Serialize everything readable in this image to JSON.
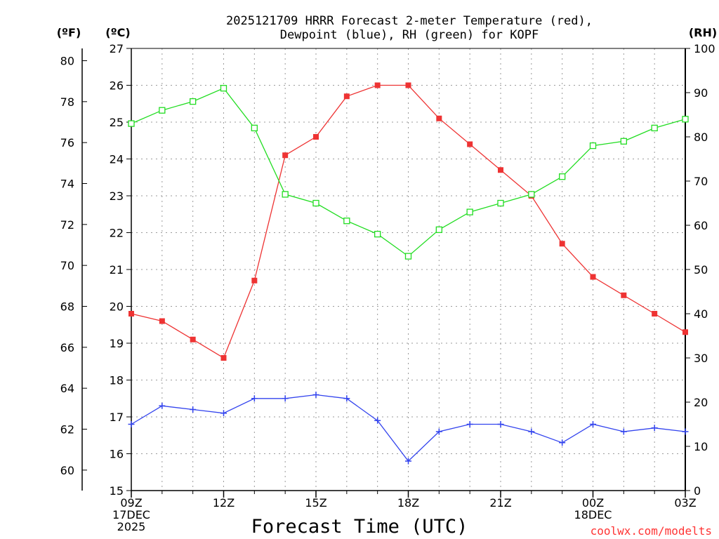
{
  "title_lines": [
    "2025121709 HRRR Forecast 2-meter Temperature (red),",
    "Dewpoint (blue), RH (green) for KOPF"
  ],
  "units": {
    "fahrenheit": "(ºF)",
    "celsius": "(ºC)",
    "rh": "(RH)"
  },
  "x_axis_label": "Forecast Time (UTC)",
  "credit": "coolwx.com/modelts",
  "chart_data": {
    "type": "line",
    "title": "2025121709 HRRR Forecast 2-meter Temperature (red), Dewpoint (blue), RH (green) for KOPF",
    "xlabel": "Forecast Time (UTC)",
    "x_hours": [
      0,
      1,
      2,
      3,
      4,
      5,
      6,
      7,
      8,
      9,
      10,
      11,
      12,
      13,
      14,
      15,
      16,
      17,
      18
    ],
    "xlim": [
      0,
      18
    ],
    "celsius_axis": {
      "range": [
        15,
        27
      ],
      "ticks": [
        "15",
        "16",
        "17",
        "18",
        "19",
        "20",
        "21",
        "22",
        "23",
        "24",
        "25",
        "26",
        "27"
      ]
    },
    "fahrenheit_axis": {
      "ticks": [
        "60",
        "62",
        "64",
        "66",
        "68",
        "70",
        "72",
        "74",
        "76",
        "78",
        "80"
      ]
    },
    "rh_axis": {
      "range": [
        0,
        100
      ],
      "ticks": [
        "0",
        "10",
        "20",
        "30",
        "40",
        "50",
        "60",
        "70",
        "80",
        "90",
        "100"
      ]
    },
    "x_ticks": [
      {
        "hour": 0,
        "lines": [
          "09Z",
          "17DEC",
          "2025"
        ]
      },
      {
        "hour": 3,
        "lines": [
          "12Z"
        ]
      },
      {
        "hour": 6,
        "lines": [
          "15Z"
        ]
      },
      {
        "hour": 9,
        "lines": [
          "18Z"
        ]
      },
      {
        "hour": 12,
        "lines": [
          "21Z"
        ]
      },
      {
        "hour": 15,
        "lines": [
          "00Z",
          "18DEC"
        ]
      },
      {
        "hour": 18,
        "lines": [
          "03Z"
        ]
      }
    ],
    "series": [
      {
        "name": "Temperature",
        "unit": "C",
        "color": "#ee3333",
        "marker": "filled-square",
        "values": [
          19.8,
          19.6,
          19.1,
          18.6,
          20.7,
          24.1,
          24.6,
          25.7,
          26.0,
          26.0,
          25.1,
          24.4,
          23.7,
          23.0,
          21.7,
          20.8,
          20.3,
          19.8,
          19.3
        ]
      },
      {
        "name": "Dewpoint",
        "unit": "C",
        "color": "#3344ee",
        "marker": "plus",
        "values": [
          16.8,
          17.3,
          17.2,
          17.1,
          17.5,
          17.5,
          17.6,
          17.5,
          16.9,
          15.8,
          16.6,
          16.8,
          16.8,
          16.6,
          16.3,
          16.8,
          16.6,
          16.7,
          16.6
        ]
      },
      {
        "name": "RH",
        "unit": "%",
        "color": "#22dd22",
        "marker": "open-square",
        "values": [
          83,
          86,
          88,
          91,
          82,
          67,
          65,
          61,
          58,
          53,
          59,
          63,
          65,
          67,
          71,
          78,
          79,
          82,
          84
        ]
      }
    ]
  }
}
